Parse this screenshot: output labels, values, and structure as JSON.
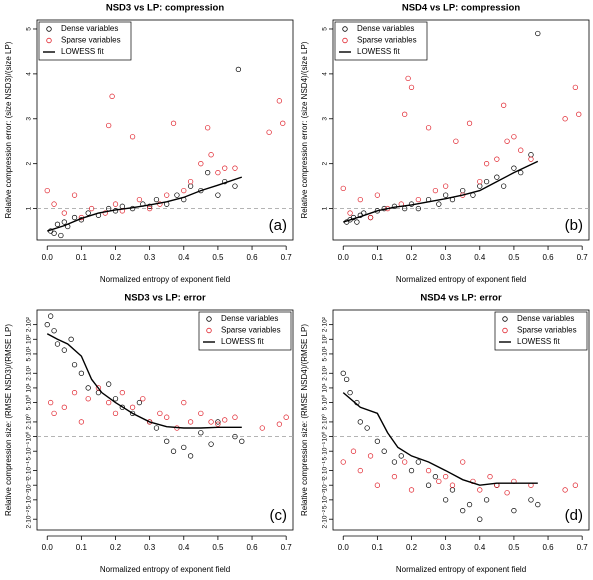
{
  "chart_data": [
    {
      "type": "scatter",
      "title": "NSD3 vs LP: compression",
      "x_label": "Normalized entropy of exponent field",
      "y_label": "Relative compression error: (size NSD3)/(size LP)",
      "annotation": "(a)",
      "legend": "top-left",
      "ref_line": 1,
      "log_y": false,
      "xlim": [
        -0.03,
        0.72
      ],
      "xticks": [
        {
          "value": 0,
          "label": "0.0"
        },
        0.1,
        0.2,
        0.3,
        0.4,
        0.5,
        0.6,
        0.7
      ],
      "ylim": [
        0.3,
        5.2
      ],
      "yticks": [
        1,
        2,
        3,
        4,
        5
      ],
      "series": [
        {
          "name": "Dense variables",
          "kind": "points",
          "color": "#000000",
          "x": [
            0.01,
            0.02,
            0.03,
            0.04,
            0.05,
            0.06,
            0.08,
            0.1,
            0.12,
            0.15,
            0.18,
            0.2,
            0.22,
            0.25,
            0.28,
            0.3,
            0.32,
            0.35,
            0.38,
            0.4,
            0.42,
            0.45,
            0.47,
            0.5,
            0.52,
            0.55,
            0.56
          ],
          "values": [
            0.5,
            0.45,
            0.65,
            0.4,
            0.7,
            0.6,
            0.8,
            0.75,
            0.9,
            0.85,
            1.0,
            0.95,
            1.05,
            1.0,
            1.1,
            1.05,
            1.2,
            1.1,
            1.3,
            1.2,
            1.5,
            1.4,
            1.8,
            1.3,
            1.6,
            1.5,
            4.1
          ]
        },
        {
          "name": "Sparse variables",
          "kind": "points",
          "color": "#e0202a",
          "x": [
            0.0,
            0.02,
            0.05,
            0.08,
            0.1,
            0.13,
            0.17,
            0.18,
            0.19,
            0.2,
            0.22,
            0.25,
            0.27,
            0.3,
            0.33,
            0.35,
            0.37,
            0.4,
            0.42,
            0.45,
            0.47,
            0.48,
            0.5,
            0.52,
            0.55,
            0.65,
            0.68,
            0.69
          ],
          "values": [
            1.4,
            1.1,
            0.9,
            1.3,
            0.8,
            1.0,
            0.9,
            2.85,
            3.5,
            1.1,
            0.95,
            2.6,
            1.2,
            1.0,
            1.1,
            1.3,
            2.9,
            1.4,
            1.6,
            2.0,
            2.8,
            2.2,
            1.8,
            1.9,
            1.9,
            2.7,
            3.4,
            2.9
          ]
        },
        {
          "name": "LOWESS fit",
          "kind": "line",
          "color": "#000000",
          "x": [
            0.0,
            0.05,
            0.1,
            0.15,
            0.2,
            0.25,
            0.3,
            0.35,
            0.4,
            0.45,
            0.5,
            0.57
          ],
          "values": [
            0.5,
            0.62,
            0.78,
            0.9,
            0.97,
            1.02,
            1.08,
            1.15,
            1.25,
            1.4,
            1.52,
            1.7
          ]
        }
      ]
    },
    {
      "type": "scatter",
      "title": "NSD4 vs LP: compression",
      "x_label": "Normalized entropy of exponent field",
      "y_label": "Relative compression error: (size NSD4)/(size LP)",
      "annotation": "(b)",
      "legend": "top-left",
      "ref_line": 1,
      "log_y": false,
      "xlim": [
        -0.03,
        0.72
      ],
      "xticks": [
        {
          "value": 0,
          "label": "0.0"
        },
        0.1,
        0.2,
        0.3,
        0.4,
        0.5,
        0.6,
        0.7
      ],
      "ylim": [
        0.3,
        5.2
      ],
      "yticks": [
        1,
        2,
        3,
        4,
        5
      ],
      "series": [
        {
          "name": "Dense variables",
          "kind": "points",
          "color": "#000000",
          "x": [
            0.01,
            0.02,
            0.03,
            0.04,
            0.05,
            0.06,
            0.08,
            0.1,
            0.12,
            0.15,
            0.18,
            0.2,
            0.22,
            0.25,
            0.28,
            0.3,
            0.32,
            0.35,
            0.38,
            0.4,
            0.42,
            0.45,
            0.47,
            0.5,
            0.52,
            0.55,
            0.57
          ],
          "values": [
            0.7,
            0.75,
            0.8,
            0.7,
            0.85,
            0.9,
            0.8,
            0.95,
            1.0,
            1.05,
            1.0,
            1.1,
            1.0,
            1.2,
            1.1,
            1.3,
            1.2,
            1.4,
            1.3,
            1.5,
            1.6,
            1.7,
            1.5,
            1.9,
            1.8,
            2.2,
            4.9
          ]
        },
        {
          "name": "Sparse variables",
          "kind": "points",
          "color": "#e0202a",
          "x": [
            0.0,
            0.02,
            0.05,
            0.08,
            0.1,
            0.13,
            0.17,
            0.18,
            0.19,
            0.2,
            0.22,
            0.25,
            0.27,
            0.3,
            0.33,
            0.35,
            0.37,
            0.4,
            0.42,
            0.45,
            0.47,
            0.48,
            0.5,
            0.52,
            0.55,
            0.65,
            0.68,
            0.69
          ],
          "values": [
            1.45,
            0.9,
            1.2,
            0.8,
            1.3,
            1.0,
            1.1,
            3.1,
            3.9,
            3.7,
            1.2,
            2.8,
            1.4,
            1.5,
            2.5,
            1.3,
            2.9,
            1.6,
            2.0,
            2.1,
            3.3,
            2.5,
            2.6,
            2.3,
            2.1,
            3.0,
            3.7,
            3.1
          ]
        },
        {
          "name": "LOWESS fit",
          "kind": "line",
          "color": "#000000",
          "x": [
            0.0,
            0.05,
            0.1,
            0.15,
            0.2,
            0.25,
            0.3,
            0.35,
            0.4,
            0.45,
            0.5,
            0.57
          ],
          "values": [
            0.7,
            0.82,
            0.95,
            1.03,
            1.08,
            1.15,
            1.22,
            1.3,
            1.4,
            1.6,
            1.8,
            2.05
          ]
        }
      ]
    },
    {
      "type": "scatter",
      "title": "NSD3 vs LP: error",
      "x_label": "Normalized entropy of exponent field",
      "y_label": "Relative compression size: (RMSE NSD3)/(RMSE LP)",
      "annotation": "(c)",
      "legend": "top-right",
      "ref_line": 1,
      "log_y": true,
      "xlim": [
        -0.03,
        0.72
      ],
      "xticks": [
        {
          "value": 0,
          "label": "0.0"
        },
        0.1,
        0.2,
        0.3,
        0.4,
        0.5,
        0.6,
        0.7
      ],
      "ylim": [
        0.012,
        400
      ],
      "yticks": [
        {
          "value": 0.02,
          "label": "2·10⁻²"
        },
        {
          "value": 0.05,
          "label": "5·10⁻²"
        },
        {
          "value": 0.1,
          "label": "10⁻¹"
        },
        {
          "value": 0.2,
          "label": "2·10⁻¹"
        },
        {
          "value": 0.5,
          "label": "5·10⁻¹"
        },
        {
          "value": 1,
          "label": "10⁰"
        },
        {
          "value": 2,
          "label": "2·10⁰"
        },
        {
          "value": 5,
          "label": "5·10⁰"
        },
        {
          "value": 10,
          "label": "10¹"
        },
        {
          "value": 20,
          "label": "2·10¹"
        },
        {
          "value": 50,
          "label": "5·10¹"
        },
        {
          "value": 100,
          "label": "10²"
        },
        {
          "value": 200,
          "label": "2·10²"
        }
      ],
      "series": [
        {
          "name": "Dense variables",
          "kind": "points",
          "color": "#000000",
          "x": [
            0.0,
            0.01,
            0.02,
            0.03,
            0.05,
            0.07,
            0.08,
            0.1,
            0.12,
            0.15,
            0.18,
            0.2,
            0.22,
            0.25,
            0.27,
            0.3,
            0.32,
            0.35,
            0.37,
            0.4,
            0.42,
            0.45,
            0.48,
            0.5,
            0.55,
            0.57
          ],
          "values": [
            200,
            300,
            150,
            80,
            60,
            100,
            30,
            20,
            10,
            8,
            12,
            6,
            4,
            3,
            5,
            2,
            1.5,
            0.8,
            0.5,
            0.6,
            0.4,
            1.2,
            0.7,
            2,
            1.0,
            0.8
          ]
        },
        {
          "name": "Sparse variables",
          "kind": "points",
          "color": "#e0202a",
          "x": [
            0.01,
            0.02,
            0.05,
            0.08,
            0.1,
            0.12,
            0.15,
            0.18,
            0.2,
            0.22,
            0.25,
            0.28,
            0.3,
            0.33,
            0.35,
            0.38,
            0.4,
            0.42,
            0.45,
            0.48,
            0.5,
            0.52,
            0.55,
            0.63,
            0.68,
            0.7
          ],
          "values": [
            5,
            3,
            4,
            8,
            2,
            6,
            10,
            5,
            3,
            8,
            4,
            6,
            2,
            3,
            2.5,
            1.5,
            5,
            2,
            3,
            2,
            1.8,
            2.2,
            2.5,
            1.5,
            1.8,
            2.5
          ]
        },
        {
          "name": "LOWESS fit",
          "kind": "line",
          "color": "#000000",
          "x": [
            0.0,
            0.03,
            0.06,
            0.1,
            0.13,
            0.16,
            0.2,
            0.25,
            0.3,
            0.35,
            0.4,
            0.45,
            0.5,
            0.57
          ],
          "values": [
            130,
            100,
            80,
            45,
            15,
            8,
            5,
            3,
            2,
            1.6,
            1.5,
            1.5,
            1.55,
            1.55
          ]
        }
      ]
    },
    {
      "type": "scatter",
      "title": "NSD4 vs LP: error",
      "x_label": "Normalized entropy of exponent field",
      "y_label": "Relative compression size: (RMSE NSD4)/(RMSE LP)",
      "annotation": "(d)",
      "legend": "top-right",
      "ref_line": 1,
      "log_y": true,
      "xlim": [
        -0.03,
        0.72
      ],
      "xticks": [
        {
          "value": 0,
          "label": "0.0"
        },
        0.1,
        0.2,
        0.3,
        0.4,
        0.5,
        0.6,
        0.7
      ],
      "ylim": [
        0.012,
        400
      ],
      "yticks": [
        {
          "value": 0.02,
          "label": "2·10⁻²"
        },
        {
          "value": 0.05,
          "label": "5·10⁻²"
        },
        {
          "value": 0.1,
          "label": "10⁻¹"
        },
        {
          "value": 0.2,
          "label": "2·10⁻¹"
        },
        {
          "value": 0.5,
          "label": "5·10⁻¹"
        },
        {
          "value": 1,
          "label": "10⁰"
        },
        {
          "value": 2,
          "label": "2·10⁰"
        },
        {
          "value": 5,
          "label": "5·10⁰"
        },
        {
          "value": 10,
          "label": "10¹"
        },
        {
          "value": 20,
          "label": "2·10¹"
        },
        {
          "value": 50,
          "label": "5·10¹"
        },
        {
          "value": 100,
          "label": "10²"
        },
        {
          "value": 200,
          "label": "2·10²"
        }
      ],
      "series": [
        {
          "name": "Dense variables",
          "kind": "points",
          "color": "#000000",
          "x": [
            0.0,
            0.01,
            0.02,
            0.04,
            0.05,
            0.07,
            0.1,
            0.12,
            0.15,
            0.17,
            0.2,
            0.22,
            0.25,
            0.27,
            0.3,
            0.32,
            0.35,
            0.37,
            0.4,
            0.42,
            0.45,
            0.5,
            0.55,
            0.57
          ],
          "values": [
            20,
            15,
            8,
            5,
            2,
            1.5,
            0.8,
            0.5,
            0.3,
            0.4,
            0.2,
            0.3,
            0.1,
            0.15,
            0.05,
            0.08,
            0.03,
            0.04,
            0.02,
            0.05,
            0.1,
            0.03,
            0.05,
            0.04
          ]
        },
        {
          "name": "Sparse variables",
          "kind": "points",
          "color": "#e0202a",
          "x": [
            0.0,
            0.03,
            0.05,
            0.08,
            0.1,
            0.15,
            0.18,
            0.2,
            0.25,
            0.28,
            0.3,
            0.32,
            0.35,
            0.38,
            0.4,
            0.43,
            0.45,
            0.48,
            0.5,
            0.55,
            0.65,
            0.68
          ],
          "values": [
            0.3,
            0.5,
            0.2,
            0.4,
            0.1,
            0.15,
            0.3,
            0.08,
            0.2,
            0.12,
            0.15,
            0.1,
            0.3,
            0.12,
            0.08,
            0.15,
            0.1,
            0.07,
            0.12,
            0.1,
            0.08,
            0.1
          ]
        },
        {
          "name": "LOWESS fit",
          "kind": "line",
          "color": "#000000",
          "x": [
            0.0,
            0.05,
            0.1,
            0.13,
            0.16,
            0.2,
            0.25,
            0.3,
            0.35,
            0.4,
            0.45,
            0.5,
            0.57
          ],
          "values": [
            8,
            4,
            3,
            1.2,
            0.6,
            0.4,
            0.3,
            0.2,
            0.13,
            0.1,
            0.11,
            0.11,
            0.11
          ]
        }
      ]
    }
  ]
}
